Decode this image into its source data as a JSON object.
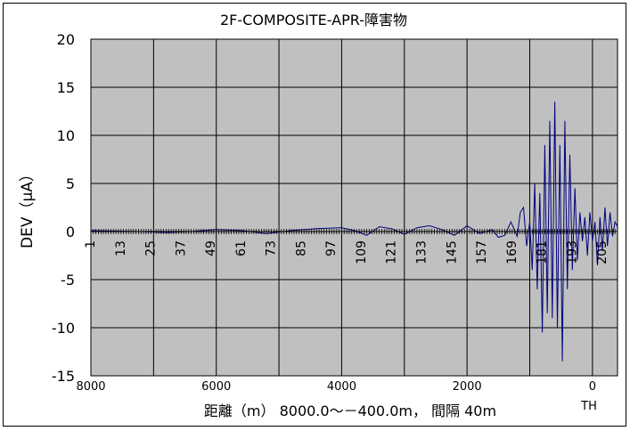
{
  "chart_data": {
    "type": "line",
    "title": "2F-COMPOSITE-APR-障害物",
    "xlabel": "距離（m）  8000.0～－400.0m，  間隔 40m",
    "ylabel": "DEV（μA）",
    "x_note": "TH",
    "xlim": [
      8000,
      -400
    ],
    "ylim": [
      -15,
      20
    ],
    "x_ticks": [
      8000,
      6000,
      4000,
      2000,
      0
    ],
    "y_ticks": [
      -15,
      -10,
      -5,
      0,
      5,
      10,
      15,
      20
    ],
    "index_labels": [
      "1",
      "13",
      "25",
      "37",
      "49",
      "61",
      "73",
      "85",
      "97",
      "109",
      "121",
      "133",
      "145",
      "157",
      "169",
      "181",
      "193",
      "205"
    ],
    "grid": true,
    "plot_background": "#c0c0c0",
    "line_color": "#000080",
    "series": [
      {
        "x": [
          8000,
          7600,
          7200,
          6800,
          6400,
          6000,
          5600,
          5200,
          4800,
          4400,
          4000,
          3800,
          3600,
          3400,
          3200,
          3000,
          2800,
          2600,
          2400,
          2200,
          2000,
          1800,
          1600,
          1500,
          1400,
          1300,
          1200,
          1150,
          1100,
          1050,
          1000,
          960,
          920,
          880,
          840,
          800,
          760,
          720,
          680,
          640,
          600,
          560,
          520,
          480,
          440,
          400,
          360,
          320,
          280,
          240,
          200,
          160,
          120,
          80,
          40,
          0,
          -40,
          -80,
          -120,
          -160,
          -200,
          -240,
          -280,
          -320,
          -360,
          -400
        ],
        "values": [
          0.1,
          0.05,
          0,
          -0.1,
          0,
          0.2,
          0.1,
          -0.2,
          0.1,
          0.3,
          0.4,
          0.1,
          -0.4,
          0.5,
          0.3,
          -0.3,
          0.4,
          0.6,
          0.2,
          -0.4,
          0.6,
          -0.2,
          0.2,
          -0.6,
          -0.4,
          1.0,
          -0.5,
          2.0,
          2.5,
          -1.5,
          1.0,
          -4.0,
          5.0,
          -6.0,
          4.0,
          -10.5,
          9.0,
          -8.5,
          11.5,
          -9.0,
          13.5,
          -10.0,
          9.0,
          -13.5,
          11.5,
          -6.0,
          8.0,
          -4.0,
          4.5,
          -3.0,
          2.0,
          -1.0,
          1.5,
          -2.5,
          2.0,
          -1.0,
          1.0,
          -3.5,
          1.5,
          -2.0,
          2.5,
          -1.5,
          2.0,
          -0.5,
          1.0,
          0.5
        ]
      }
    ]
  }
}
